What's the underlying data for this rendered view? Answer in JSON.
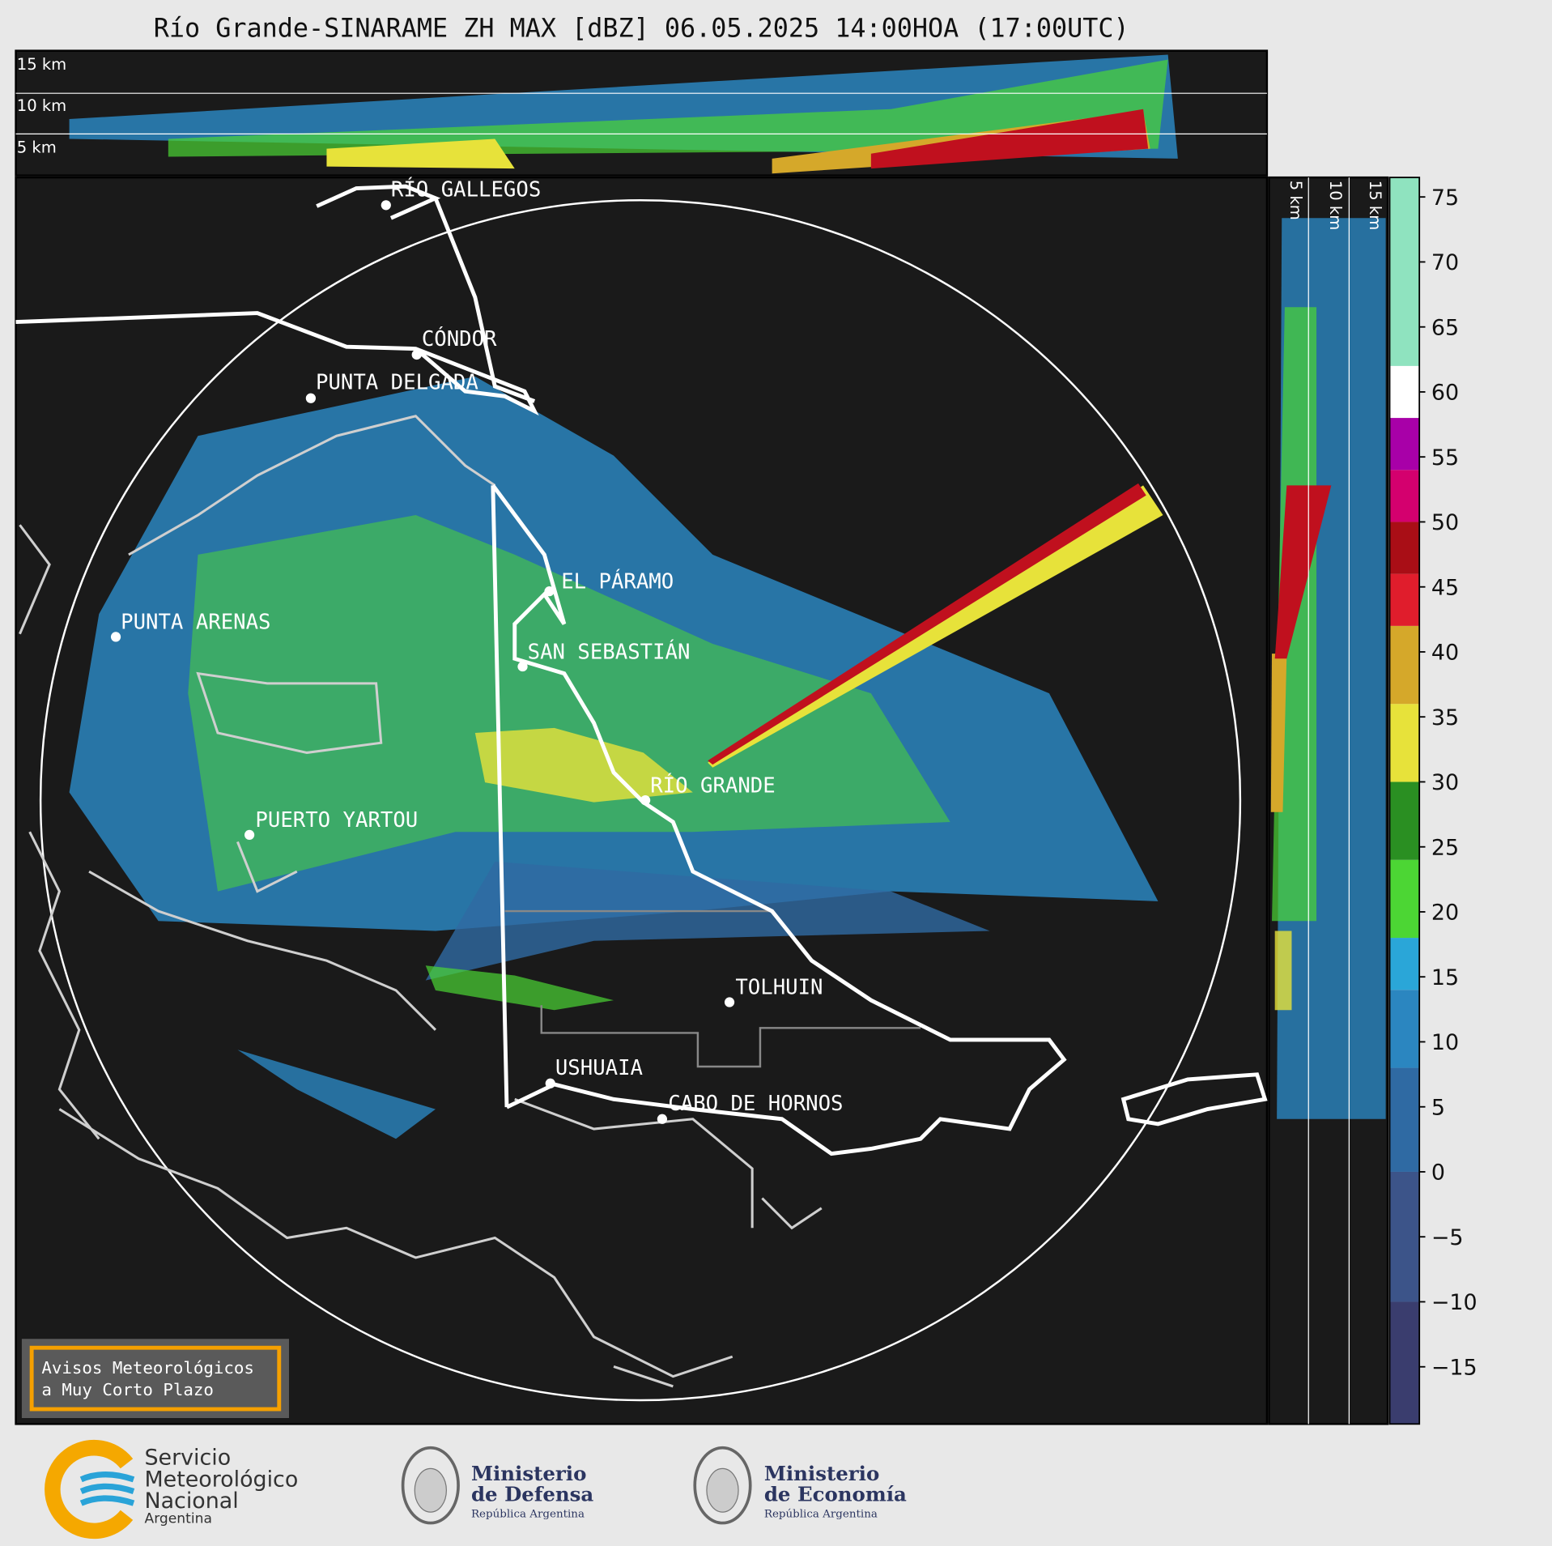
{
  "title": "Río Grande-SINARAME ZH MAX [dBZ] 06.05.2025 14:00HOA (17:00UTC)",
  "top_panel": {
    "height_labels": [
      "15 km",
      "10 km",
      "5 km"
    ]
  },
  "side_panel": {
    "height_labels": [
      "5 km",
      "10 km",
      "15 km"
    ]
  },
  "cities": [
    "RÍO GALLEGOS",
    "CÓNDOR",
    "PUNTA DELGADA",
    "PUNTA ARENAS",
    "EL PÁRAMO",
    "SAN SEBASTIÁN",
    "RÍO GRANDE",
    "PUERTO YARTOU",
    "TOLHUIN",
    "USHUAIA",
    "CABO DE HORNOS"
  ],
  "colorbar": {
    "range": [
      -19.4,
      76.5
    ],
    "ticks": [
      75,
      70,
      65,
      60,
      55,
      50,
      45,
      40,
      35,
      30,
      25,
      20,
      15,
      10,
      5,
      0,
      {
        "value": -5,
        "label": "−5"
      },
      {
        "value": -10,
        "label": "−10"
      },
      {
        "value": -15,
        "label": "−15"
      }
    ],
    "bands": [
      {
        "from": -19.4,
        "to": -10,
        "color": "#3a3d6e"
      },
      {
        "from": -10,
        "to": 0,
        "color": "#3c5489"
      },
      {
        "from": 0,
        "to": 8,
        "color": "#2f6aa3"
      },
      {
        "from": 8,
        "to": 14,
        "color": "#2b86c0"
      },
      {
        "from": 14,
        "to": 18,
        "color": "#2aa6d8"
      },
      {
        "from": 18,
        "to": 24,
        "color": "#4cd634"
      },
      {
        "from": 24,
        "to": 30,
        "color": "#2a8f22"
      },
      {
        "from": 30,
        "to": 36,
        "color": "#e7e23a"
      },
      {
        "from": 36,
        "to": 42,
        "color": "#d5a82a"
      },
      {
        "from": 42,
        "to": 46,
        "color": "#e01d2c"
      },
      {
        "from": 46,
        "to": 50,
        "color": "#a90e16"
      },
      {
        "from": 50,
        "to": 54,
        "color": "#d4006e"
      },
      {
        "from": 54,
        "to": 58,
        "color": "#a800a8"
      },
      {
        "from": 58,
        "to": 62,
        "color": "#ffffff"
      },
      {
        "from": 62,
        "to": 76.5,
        "color": "#8fe3bf"
      }
    ]
  },
  "warning_box": [
    "Avisos Meteorológicos",
    "a Muy Corto Plazo"
  ],
  "logos": {
    "smn": [
      "Servicio",
      "Meteorológico",
      "Nacional",
      "Argentina"
    ],
    "defensa": [
      "Ministerio",
      "de Defensa",
      "República Argentina"
    ],
    "economia": [
      "Ministerio",
      "de Economía",
      "República Argentina"
    ]
  }
}
